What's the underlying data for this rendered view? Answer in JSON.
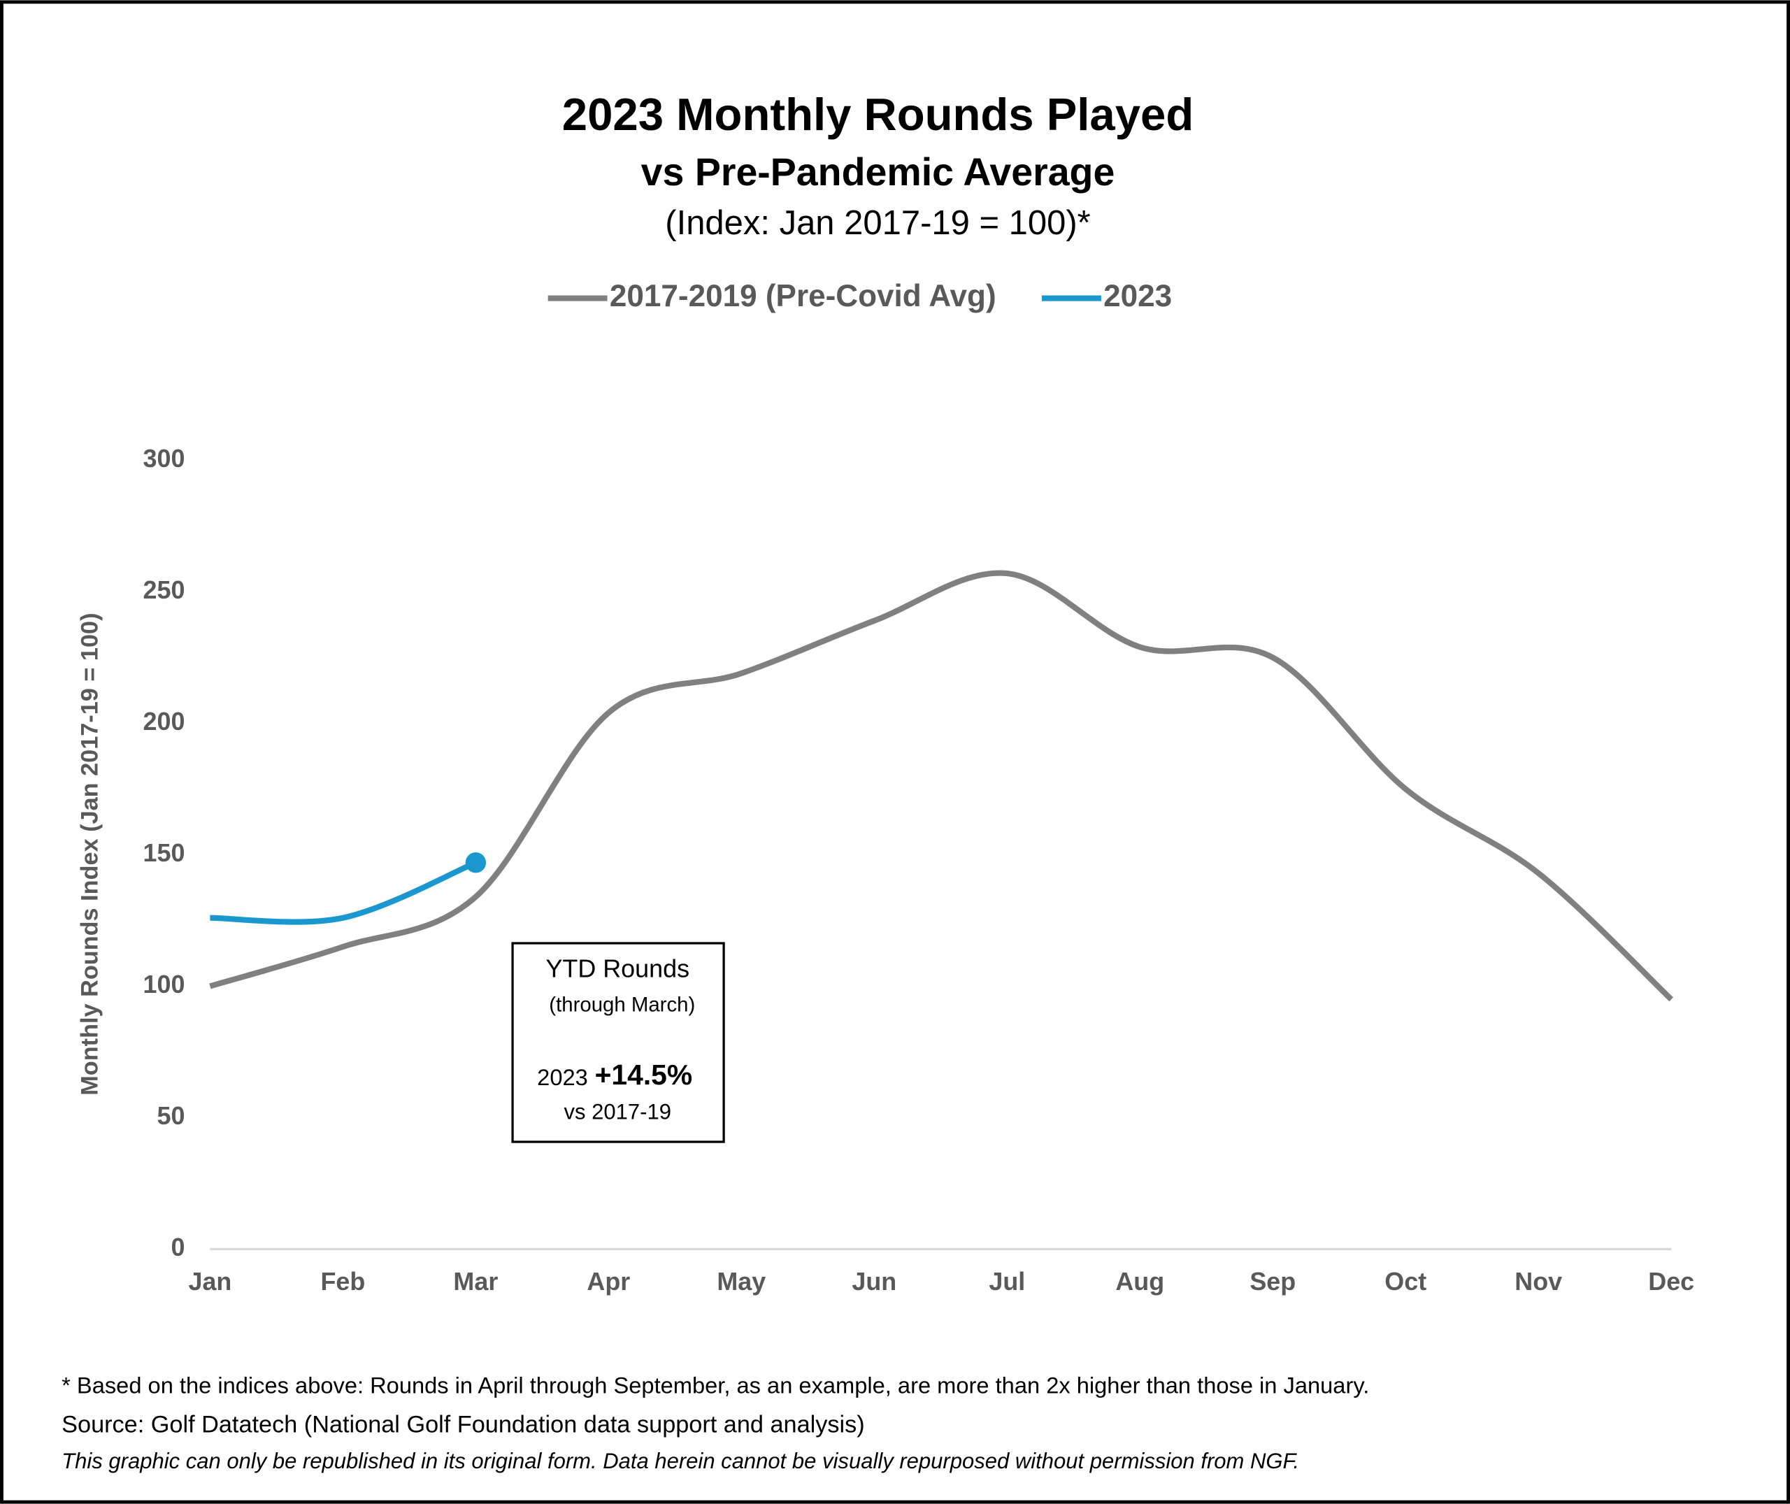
{
  "chart_data": {
    "type": "line",
    "title": "2023 Monthly Rounds Played",
    "subtitle": "vs Pre-Pandemic Average",
    "subtitle2": "(Index: Jan 2017-19 = 100)*",
    "y_label": "Monthly Rounds Index (Jan 2017-19 = 100)",
    "categories": [
      "Jan",
      "Feb",
      "Mar",
      "Apr",
      "May",
      "Jun",
      "Jul",
      "Aug",
      "Sep",
      "Oct",
      "Nov",
      "Dec"
    ],
    "series": [
      {
        "name": "2017-2019 (Pre-Covid Avg)",
        "color": "#808080",
        "values": [
          100,
          115,
          134,
          204,
          219,
          239,
          257,
          229,
          225,
          175,
          143,
          95
        ]
      },
      {
        "name": "2023",
        "color": "#1a97cf",
        "values": [
          126,
          126,
          147,
          null,
          null,
          null,
          null,
          null,
          null,
          null,
          null,
          null
        ]
      }
    ],
    "ylim": [
      0,
      300
    ],
    "yticks": [
      0,
      50,
      100,
      150,
      200,
      250,
      300
    ],
    "grid": false,
    "legend": "top",
    "annotation": {
      "title": "YTD Rounds",
      "subtitle": "(through March)",
      "year": "2023",
      "change": "+14.5%",
      "compare": "vs 2017-19"
    },
    "notes": [
      "* Based on the indices above: Rounds in April through September, as an example, are more than 2x higher than those in January.",
      "Source: Golf Datatech (National Golf Foundation data support and analysis)",
      "This graphic can only be republished in its original form. Data herein cannot be visually repurposed without permission from NGF."
    ]
  }
}
